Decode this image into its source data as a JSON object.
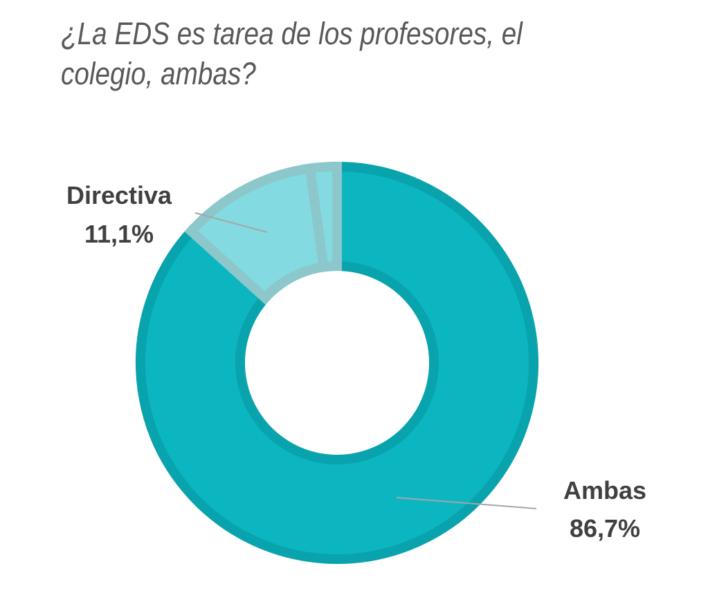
{
  "chart_data": {
    "type": "pie",
    "variant": "donut",
    "title": "¿La EDS es tarea de los profesores, el colegio, ambas?",
    "slices": [
      {
        "label": "Ambas",
        "value": 86.7,
        "display": "86,7%",
        "color": "#0bb6c1",
        "stroke": "#09a3ad"
      },
      {
        "label": "Directiva",
        "value": 11.1,
        "display": "11,1%",
        "color": "#83dbe1",
        "stroke": "#8cc7cb"
      },
      {
        "label": "",
        "value": 2.2,
        "display": "",
        "color": "#83dbe1",
        "stroke": "#8cc7cb"
      }
    ],
    "legend": "none"
  }
}
